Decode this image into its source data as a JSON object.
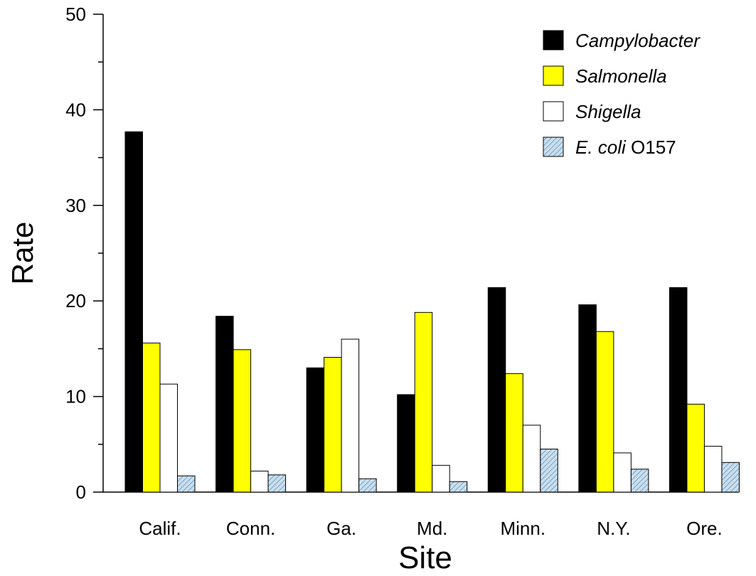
{
  "chart_data": {
    "type": "bar",
    "xlabel": "Site",
    "ylabel": "Rate",
    "ylim": [
      0,
      50
    ],
    "yticks": [
      0,
      10,
      20,
      30,
      40,
      50
    ],
    "grid": false,
    "legend_position": "top-right",
    "categories": [
      "Calif.",
      "Conn.",
      "Ga.",
      "Md.",
      "Minn.",
      "N.Y.",
      "Ore."
    ],
    "series": [
      {
        "name": "Campylobacter",
        "name_italic": "Campylobacter",
        "name_plain": "",
        "fill": "#000000",
        "pattern": "solid",
        "values": [
          37.7,
          18.4,
          13.0,
          10.2,
          21.4,
          19.6,
          21.4
        ]
      },
      {
        "name": "Salmonella",
        "name_italic": "Salmonella",
        "name_plain": "",
        "fill": "#ffff00",
        "pattern": "solid",
        "values": [
          15.6,
          14.9,
          14.1,
          18.8,
          12.4,
          16.8,
          9.2
        ]
      },
      {
        "name": "Shigella",
        "name_italic": "Shigella",
        "name_plain": "",
        "fill": "#ffffff",
        "pattern": "solid",
        "values": [
          11.3,
          2.2,
          16.0,
          2.8,
          7.0,
          4.1,
          4.8
        ]
      },
      {
        "name": "E. coli O157",
        "name_italic": "E. coli",
        "name_plain": "O157",
        "fill": "#b8d4e6",
        "pattern": "hatch",
        "values": [
          1.7,
          1.8,
          1.4,
          1.1,
          4.5,
          2.4,
          3.1
        ]
      }
    ]
  }
}
